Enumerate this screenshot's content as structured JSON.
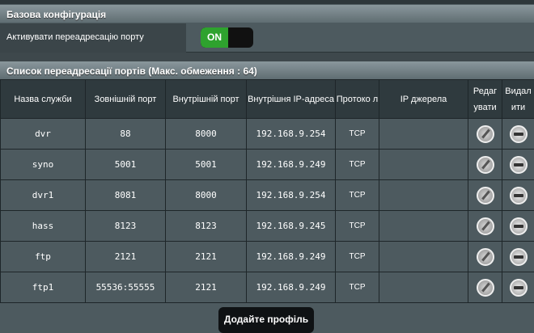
{
  "basic_config": {
    "title": "Базова конфігурація",
    "enable_label": "Активувати переадресацію порту",
    "toggle_state": "ON"
  },
  "list": {
    "title": "Список переадресації портів (Макс. обмеження : 64)",
    "columns": [
      "Назва служби",
      "Зовнішній порт",
      "Внутрішній порт",
      "Внутрішня IP-адреса",
      "Протоко л",
      "IP джерела",
      "Редаг увати",
      "Видал ити"
    ],
    "rows": [
      {
        "name": "dvr",
        "ext": "88",
        "int": "8000",
        "ip": "192.168.9.254",
        "proto": "TCP",
        "src": ""
      },
      {
        "name": "syno",
        "ext": "5001",
        "int": "5001",
        "ip": "192.168.9.249",
        "proto": "TCP",
        "src": ""
      },
      {
        "name": "dvr1",
        "ext": "8081",
        "int": "8000",
        "ip": "192.168.9.254",
        "proto": "TCP",
        "src": ""
      },
      {
        "name": "hass",
        "ext": "8123",
        "int": "8123",
        "ip": "192.168.9.245",
        "proto": "TCP",
        "src": ""
      },
      {
        "name": "ftp",
        "ext": "2121",
        "int": "2121",
        "ip": "192.168.9.249",
        "proto": "TCP",
        "src": ""
      },
      {
        "name": "ftp1",
        "ext": "55536:55555",
        "int": "2121",
        "ip": "192.168.9.249",
        "proto": "TCP",
        "src": ""
      }
    ]
  },
  "add_button": "Додайте профіль"
}
